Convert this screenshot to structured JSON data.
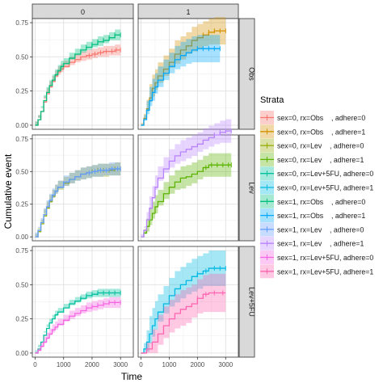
{
  "chart_data": {
    "type": "line",
    "subtype": "step-with-confidence-band",
    "xlabel": "Time",
    "ylabel": "Cumulative event",
    "xlim": [
      -100,
      3450
    ],
    "ylim": [
      -0.03,
      0.78
    ],
    "xticks": [
      0,
      1000,
      2000,
      3000
    ],
    "yticks": [
      0.0,
      0.25,
      0.5,
      0.75
    ],
    "xtick_labels": [
      "0",
      "1000",
      "2000",
      "3000"
    ],
    "ytick_labels": [
      "0.00",
      "0.25",
      "0.50",
      "0.75"
    ],
    "grid": true,
    "legend_title": "Strata",
    "legend_position": "right",
    "facet_cols": [
      "0",
      "1"
    ],
    "facet_rows": [
      "Obs",
      "Lev",
      "Lev+5FU"
    ],
    "series": [
      {
        "name": "sex=0, rx=Obs    , adhere=0",
        "color": "#F8766D",
        "col": 0,
        "row": 0,
        "x": [
          0,
          100,
          200,
          300,
          400,
          500,
          600,
          700,
          800,
          900,
          1000,
          1200,
          1400,
          1600,
          1800,
          2000,
          2200,
          2400,
          2600,
          2800,
          3000
        ],
        "y": [
          0,
          0.04,
          0.1,
          0.17,
          0.23,
          0.28,
          0.32,
          0.36,
          0.39,
          0.41,
          0.43,
          0.46,
          0.48,
          0.5,
          0.51,
          0.52,
          0.53,
          0.54,
          0.54,
          0.55,
          0.55
        ],
        "band": 0.04,
        "censor_x": [
          1900,
          2100,
          2300,
          2500,
          2700,
          2850,
          3000
        ]
      },
      {
        "name": "sex=0, rx=Obs    , adhere=1",
        "color": "#D39200",
        "col": 1,
        "row": 0,
        "x": [
          0,
          100,
          200,
          300,
          400,
          500,
          600,
          800,
          1000,
          1200,
          1400,
          1600,
          1800,
          2000,
          2200,
          2400,
          2600,
          2800,
          3000
        ],
        "y": [
          0,
          0.05,
          0.12,
          0.2,
          0.27,
          0.31,
          0.36,
          0.41,
          0.46,
          0.52,
          0.55,
          0.58,
          0.62,
          0.64,
          0.66,
          0.68,
          0.69,
          0.69,
          0.69
        ],
        "band": 0.1,
        "censor_x": [
          2200,
          2400,
          2600,
          2800,
          3000
        ]
      },
      {
        "name": "sex=0, rx=Lev    , adhere=0",
        "color": "#93AA00",
        "col": 0,
        "row": 1,
        "x": [
          0,
          100,
          200,
          300,
          400,
          500,
          600,
          700,
          800,
          1000,
          1200,
          1400,
          1600,
          1800,
          2000,
          2200,
          2400,
          2600,
          2800,
          3000
        ],
        "y": [
          0,
          0.04,
          0.1,
          0.16,
          0.22,
          0.27,
          0.31,
          0.35,
          0.38,
          0.41,
          0.44,
          0.46,
          0.48,
          0.49,
          0.5,
          0.51,
          0.51,
          0.51,
          0.52,
          0.52
        ],
        "band": 0.05,
        "censor_x": [
          2000,
          2200,
          2400,
          2600,
          2800,
          3000
        ]
      },
      {
        "name": "sex=0, rx=Lev    , adhere=1",
        "color": "#5BB300",
        "col": 1,
        "row": 1,
        "x": [
          0,
          100,
          200,
          300,
          400,
          500,
          600,
          800,
          1000,
          1200,
          1400,
          1600,
          1800,
          2000,
          2200,
          2400,
          2600,
          2800,
          3000,
          3200
        ],
        "y": [
          0,
          0.03,
          0.08,
          0.13,
          0.18,
          0.23,
          0.27,
          0.33,
          0.38,
          0.42,
          0.45,
          0.46,
          0.48,
          0.5,
          0.53,
          0.55,
          0.55,
          0.55,
          0.55,
          0.55
        ],
        "band": 0.09,
        "censor_x": [
          2300,
          2500,
          2700,
          2900,
          3100,
          3200
        ]
      },
      {
        "name": "sex=0, rx=Lev+5FU, adhere=0",
        "color": "#00C19F",
        "col": 0,
        "row": 2,
        "x": [
          0,
          100,
          200,
          300,
          400,
          500,
          600,
          700,
          800,
          1000,
          1200,
          1400,
          1600,
          1800,
          2000,
          2200,
          2400,
          2600,
          2800,
          3000
        ],
        "y": [
          0,
          0.03,
          0.08,
          0.13,
          0.18,
          0.22,
          0.25,
          0.28,
          0.3,
          0.33,
          0.36,
          0.38,
          0.4,
          0.42,
          0.43,
          0.44,
          0.44,
          0.44,
          0.44,
          0.44
        ],
        "band": 0.03,
        "censor_x": [
          1600,
          1800,
          2000,
          2200,
          2400,
          2600,
          2800,
          3000
        ]
      },
      {
        "name": "sex=0, rx=Lev+5FU, adhere=1",
        "color": "#00B9E3",
        "col": 1,
        "row": 2,
        "x": [
          0,
          100,
          200,
          300,
          400,
          500,
          600,
          800,
          1000,
          1200,
          1400,
          1600,
          1800,
          2000,
          2200,
          2400,
          2600,
          2800,
          3000
        ],
        "y": [
          0,
          0.03,
          0.08,
          0.14,
          0.2,
          0.25,
          0.3,
          0.36,
          0.42,
          0.47,
          0.5,
          0.53,
          0.56,
          0.58,
          0.6,
          0.62,
          0.62,
          0.62,
          0.62
        ],
        "band": 0.13,
        "censor_x": [
          2000,
          2300,
          2600,
          2800,
          3000
        ]
      },
      {
        "name": "sex=1, rx=Obs    , adhere=0",
        "color": "#00BF7D",
        "col": 0,
        "row": 0,
        "x": [
          0,
          100,
          200,
          300,
          400,
          500,
          600,
          700,
          800,
          900,
          1000,
          1200,
          1400,
          1600,
          1800,
          2000,
          2200,
          2400,
          2600,
          2800,
          3000
        ],
        "y": [
          0,
          0.04,
          0.1,
          0.18,
          0.24,
          0.29,
          0.33,
          0.37,
          0.4,
          0.43,
          0.45,
          0.49,
          0.52,
          0.55,
          0.57,
          0.59,
          0.61,
          0.62,
          0.64,
          0.66,
          0.66
        ],
        "band": 0.04,
        "censor_x": [
          1800,
          2000,
          2200,
          2400,
          2600,
          2800,
          3000
        ]
      },
      {
        "name": "sex=1, rx=Obs    , adhere=1",
        "color": "#00A9FF",
        "col": 1,
        "row": 0,
        "x": [
          0,
          100,
          200,
          300,
          400,
          500,
          600,
          800,
          1000,
          1200,
          1400,
          1600,
          1800,
          2000,
          2200,
          2400,
          2600,
          2800
        ],
        "y": [
          0,
          0.04,
          0.11,
          0.18,
          0.24,
          0.28,
          0.33,
          0.38,
          0.43,
          0.48,
          0.51,
          0.53,
          0.55,
          0.56,
          0.56,
          0.56,
          0.56,
          0.56
        ],
        "band": 0.1,
        "censor_x": [
          2000,
          2200,
          2400,
          2600,
          2800
        ]
      },
      {
        "name": "sex=1, rx=Lev    , adhere=0",
        "color": "#619CFF",
        "col": 0,
        "row": 1,
        "x": [
          0,
          100,
          200,
          300,
          400,
          500,
          600,
          700,
          800,
          1000,
          1200,
          1400,
          1600,
          1800,
          2000,
          2200,
          2400,
          2600,
          2800,
          3000
        ],
        "y": [
          0,
          0.05,
          0.11,
          0.17,
          0.23,
          0.28,
          0.32,
          0.35,
          0.38,
          0.42,
          0.44,
          0.46,
          0.48,
          0.49,
          0.5,
          0.51,
          0.51,
          0.52,
          0.52,
          0.52
        ],
        "band": 0.05,
        "censor_x": [
          1900,
          2100,
          2300,
          2500,
          2700,
          2900,
          3000
        ]
      },
      {
        "name": "sex=1, rx=Lev    , adhere=1",
        "color": "#B983FF",
        "col": 1,
        "row": 1,
        "x": [
          0,
          100,
          200,
          300,
          400,
          500,
          600,
          800,
          1000,
          1200,
          1400,
          1600,
          1800,
          2000,
          2200,
          2400,
          2600,
          2800,
          3000,
          3200
        ],
        "y": [
          0,
          0.05,
          0.13,
          0.22,
          0.3,
          0.38,
          0.45,
          0.52,
          0.58,
          0.62,
          0.65,
          0.67,
          0.69,
          0.71,
          0.74,
          0.76,
          0.78,
          0.8,
          0.81,
          0.81
        ],
        "band": 0.09,
        "censor_x": [
          2600,
          2800,
          3000,
          3200
        ]
      },
      {
        "name": "sex=1, rx=Lev+5FU, adhere=0",
        "color": "#F564E3",
        "col": 0,
        "row": 2,
        "x": [
          0,
          100,
          200,
          300,
          400,
          500,
          600,
          700,
          800,
          1000,
          1200,
          1400,
          1600,
          1800,
          2000,
          2200,
          2400,
          2600,
          2800,
          3000
        ],
        "y": [
          0,
          0.02,
          0.05,
          0.08,
          0.11,
          0.14,
          0.17,
          0.19,
          0.21,
          0.24,
          0.27,
          0.29,
          0.31,
          0.33,
          0.34,
          0.35,
          0.36,
          0.37,
          0.37,
          0.37
        ],
        "band": 0.04,
        "censor_x": [
          1800,
          2000,
          2200,
          2400,
          2600,
          2800,
          3000
        ]
      },
      {
        "name": "sex=1, rx=Lev+5FU, adhere=1",
        "color": "#FF64B0",
        "col": 1,
        "row": 2,
        "x": [
          0,
          200,
          400,
          600,
          800,
          1000,
          1200,
          1400,
          1600,
          1800,
          2000,
          2200,
          2400,
          2600,
          2800,
          3000
        ],
        "y": [
          0,
          0.03,
          0.08,
          0.14,
          0.2,
          0.25,
          0.29,
          0.32,
          0.34,
          0.36,
          0.4,
          0.43,
          0.44,
          0.44,
          0.44,
          0.44
        ],
        "band": 0.14,
        "censor_x": [
          2000,
          2300,
          2600,
          2900
        ]
      }
    ]
  }
}
